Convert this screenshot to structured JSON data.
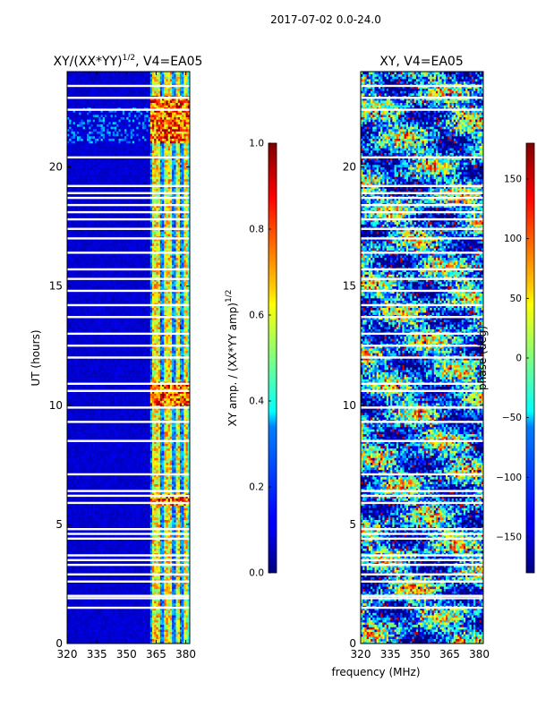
{
  "suptitle": "2017-07-02 0.0-24.0",
  "xlabel_shared": "frequency (MHz)",
  "chart_data": [
    {
      "type": "heatmap",
      "title": "XY/(XX*YY)^1/2, V4=EA05",
      "title_main": "XY/(XX*YY)",
      "title_sup": "1/2",
      "title_rest": ", V4=EA05",
      "xlabel": "",
      "ylabel": "UT (hours)",
      "xlim": [
        320,
        382
      ],
      "ylim": [
        0,
        24
      ],
      "xticks": [
        320,
        335,
        350,
        365,
        380
      ],
      "yticks": [
        0,
        5,
        10,
        15,
        20
      ],
      "colorbar": {
        "label": "XY amp. / (XX*YY amp)^1/2",
        "label_main": "XY amp. / (XX*YY amp)",
        "label_sup": "1/2",
        "range": [
          0.0,
          1.0
        ],
        "ticks": [
          "0.0",
          "0.2",
          "0.4",
          "0.6",
          "0.8",
          "1.0"
        ],
        "tick_values": [
          0.0,
          0.2,
          0.4,
          0.6,
          0.8,
          1.0
        ]
      },
      "flagged_ut_rows": [
        1.5,
        1.9,
        2.0,
        2.6,
        2.9,
        3.3,
        3.5,
        3.7,
        4.4,
        4.6,
        4.8,
        5.9,
        6.2,
        6.4,
        7.1,
        8.5,
        9.3,
        9.9,
        10.6,
        10.9,
        12.0,
        12.5,
        13.0,
        13.7,
        14.2,
        14.8,
        15.3,
        15.7,
        16.4,
        17.0,
        17.4,
        17.8,
        18.1,
        18.4,
        18.7,
        18.9,
        19.2,
        20.4,
        22.4,
        22.9,
        23.4
      ],
      "bright_bands_mhz": [
        [
          363,
          367
        ],
        [
          369,
          373
        ],
        [
          375,
          377
        ],
        [
          379,
          381
        ]
      ]
    },
    {
      "type": "heatmap",
      "title": "XY, V4=EA05",
      "xlabel": "",
      "ylabel": "",
      "xlim": [
        320,
        382
      ],
      "ylim": [
        0,
        24
      ],
      "xticks": [
        320,
        335,
        350,
        365,
        380
      ],
      "yticks": [
        0,
        5,
        10,
        15,
        20
      ],
      "colorbar": {
        "label": "phase (deg)",
        "range": [
          -180,
          180
        ],
        "ticks": [
          "−150",
          "−100",
          "−50",
          "0",
          "50",
          "100",
          "150"
        ],
        "tick_values": [
          -150,
          -100,
          -50,
          0,
          50,
          100,
          150
        ]
      },
      "flagged_ut_rows": [
        1.5,
        1.9,
        2.0,
        2.6,
        2.9,
        3.3,
        3.5,
        3.7,
        4.4,
        4.6,
        4.8,
        5.9,
        6.2,
        6.4,
        7.1,
        8.5,
        9.3,
        9.9,
        10.6,
        10.9,
        12.0,
        12.5,
        13.0,
        13.7,
        14.2,
        14.8,
        15.3,
        15.7,
        16.4,
        17.0,
        17.4,
        17.8,
        18.1,
        18.4,
        18.7,
        18.9,
        19.2,
        20.4,
        22.4,
        22.9,
        23.4
      ]
    }
  ]
}
